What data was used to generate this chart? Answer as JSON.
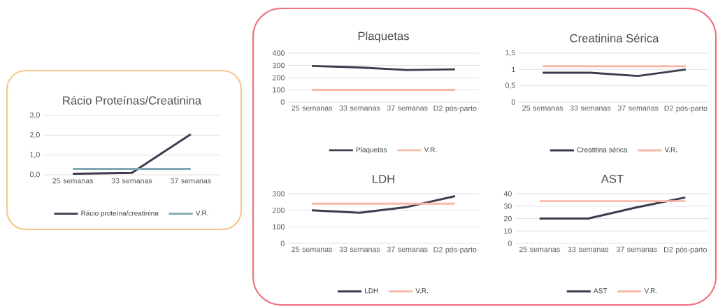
{
  "chart_data": [
    {
      "type": "line",
      "title": "Rácio Proteínas/Creatinina",
      "categories": [
        "25 semanas",
        "33 semanas",
        "37 semanas"
      ],
      "ylim": [
        0,
        3
      ],
      "yticks": [
        {
          "value": 0,
          "label": "0,0"
        },
        {
          "value": 1,
          "label": "1,0"
        },
        {
          "value": 2,
          "label": "2,0"
        },
        {
          "value": 3,
          "label": "3,0"
        }
      ],
      "grid": "y",
      "legend": "bottom",
      "series": [
        {
          "name": "Rácio proteína/creatinina",
          "color": "#3d3b4f",
          "values": [
            0.05,
            0.1,
            2.05
          ]
        },
        {
          "name": "V.R.",
          "color": "#7fa7b4",
          "values": [
            0.3,
            0.3,
            0.3
          ]
        }
      ]
    },
    {
      "type": "line",
      "title": "Plaquetas",
      "categories": [
        "25 semanas",
        "33 semanas",
        "37 semanas",
        "D2 pós-parto"
      ],
      "ylim": [
        0,
        400
      ],
      "yticks": [
        0,
        100,
        200,
        300,
        400
      ],
      "grid": "y",
      "legend": "bottom",
      "series": [
        {
          "name": "Plaquetas",
          "color": "#3d3b4f",
          "values": [
            295,
            283,
            262,
            268
          ]
        },
        {
          "name": "V.R.",
          "color": "#f9b9aa",
          "values": [
            100,
            100,
            100,
            100
          ]
        }
      ]
    },
    {
      "type": "line",
      "title": "Creatinina Sérica",
      "categories": [
        "25 semanas",
        "33 semanas",
        "37 semanas",
        "D2 pós-parto"
      ],
      "ylim": [
        0,
        1.5
      ],
      "yticks": [
        0,
        {
          "value": 0.5,
          "label": "0,5"
        },
        1,
        {
          "value": 1.5,
          "label": "1,5"
        }
      ],
      "grid": "y",
      "legend": "bottom",
      "series": [
        {
          "name": "Creatitina sérica",
          "color": "#3d3b4f",
          "values": [
            0.9,
            0.9,
            0.8,
            1.0
          ]
        },
        {
          "name": "V.R.",
          "color": "#f9b9aa",
          "values": [
            1.1,
            1.1,
            1.1,
            1.1
          ]
        }
      ]
    },
    {
      "type": "line",
      "title": "LDH",
      "categories": [
        "25 semanas",
        "33 semanas",
        "37 semanas",
        "D2 pós-parto"
      ],
      "ylim": [
        0,
        300
      ],
      "yticks": [
        0,
        100,
        200,
        300
      ],
      "grid": "y",
      "legend": "bottom",
      "series": [
        {
          "name": "LDH",
          "color": "#3d3b4f",
          "values": [
            200,
            185,
            220,
            285
          ]
        },
        {
          "name": "V.R.",
          "color": "#f9b9aa",
          "values": [
            240,
            240,
            240,
            240
          ]
        }
      ]
    },
    {
      "type": "line",
      "title": "AST",
      "categories": [
        "25 semanas",
        "33 semanas",
        "37 semanas",
        "D2 pós-parto"
      ],
      "ylim": [
        0,
        40
      ],
      "yticks": [
        0,
        10,
        20,
        30,
        40
      ],
      "grid": "y",
      "legend": "bottom",
      "series": [
        {
          "name": "AST",
          "color": "#3d3b4f",
          "values": [
            20,
            20,
            29,
            37
          ]
        },
        {
          "name": "V.R.",
          "color": "#f9b9aa",
          "values": [
            34,
            34,
            34,
            34
          ]
        }
      ]
    }
  ]
}
